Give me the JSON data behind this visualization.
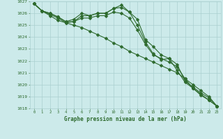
{
  "x": [
    0,
    1,
    2,
    3,
    4,
    5,
    6,
    7,
    8,
    9,
    10,
    11,
    12,
    13,
    14,
    15,
    16,
    17,
    18,
    19,
    20,
    21,
    22,
    23
  ],
  "line1": [
    1026.8,
    1026.2,
    1026.0,
    1025.7,
    1025.3,
    1025.5,
    1026.0,
    1025.8,
    1026.0,
    1026.0,
    1026.4,
    1026.7,
    1026.1,
    1025.5,
    1023.8,
    1023.2,
    1022.5,
    1022.2,
    1021.7,
    1020.3,
    1019.8,
    1019.3,
    1018.9,
    1018.2
  ],
  "line2": [
    1026.8,
    1026.2,
    1026.0,
    1025.7,
    1025.3,
    1025.3,
    1025.8,
    1025.8,
    1026.0,
    1026.0,
    1026.4,
    1026.5,
    1026.1,
    1025.0,
    1023.6,
    1022.6,
    1022.1,
    1022.2,
    1021.2,
    1020.2,
    1019.7,
    1019.1,
    1018.7,
    1018.2
  ],
  "line3": [
    1026.8,
    1026.2,
    1025.8,
    1025.4,
    1025.2,
    1025.3,
    1025.6,
    1025.6,
    1025.8,
    1025.8,
    1026.1,
    1026.0,
    1025.6,
    1024.6,
    1023.4,
    1022.5,
    1022.2,
    1021.9,
    1021.5,
    1020.5,
    1019.7,
    1019.2,
    1018.7,
    1018.2
  ],
  "line4": [
    1026.8,
    1026.2,
    1025.9,
    1025.6,
    1025.2,
    1025.0,
    1024.8,
    1024.5,
    1024.2,
    1023.9,
    1023.5,
    1023.2,
    1022.8,
    1022.5,
    1022.2,
    1021.9,
    1021.6,
    1021.3,
    1021.0,
    1020.5,
    1020.0,
    1019.5,
    1019.0,
    1018.2
  ],
  "ylim": [
    1018,
    1027
  ],
  "yticks": [
    1018,
    1019,
    1020,
    1021,
    1022,
    1023,
    1024,
    1025,
    1026,
    1027
  ],
  "xticks": [
    0,
    1,
    2,
    3,
    4,
    5,
    6,
    7,
    8,
    9,
    10,
    11,
    12,
    13,
    14,
    15,
    16,
    17,
    18,
    19,
    20,
    21,
    22,
    23
  ],
  "xlabel": "Graphe pression niveau de la mer (hPa)",
  "line_color": "#2d6a2d",
  "bg_color": "#cceaea",
  "grid_color": "#aacfcf",
  "tick_color": "#2d6a2d",
  "label_color": "#2d6a2d"
}
